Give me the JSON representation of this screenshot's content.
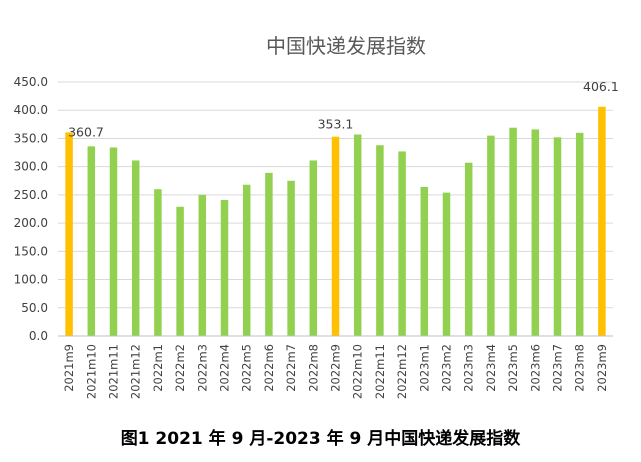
{
  "caption": "图1 2021 年 9 月-2023 年 9 月中国快递发展指数",
  "colors": {
    "normal": "#92D050",
    "highlight": "#FFC000"
  },
  "chart_data": {
    "type": "bar",
    "title": "中国快递发展指数",
    "xlabel": "",
    "ylabel": "",
    "ylim": [
      0,
      450
    ],
    "y_ticks": [
      "0.0",
      "50.0",
      "100.0",
      "150.0",
      "200.0",
      "250.0",
      "300.0",
      "350.0",
      "400.0",
      "450.0"
    ],
    "grid": true,
    "legend": "none",
    "categories": [
      "2021m9",
      "2021m10",
      "2021m11",
      "2021m12",
      "2022m1",
      "2022m2",
      "2022m3",
      "2022m4",
      "2022m5",
      "2022m6",
      "2022m7",
      "2022m8",
      "2022m9",
      "2022m10",
      "2022m11",
      "2022m12",
      "2023m1",
      "2023m2",
      "2023m3",
      "2023m4",
      "2023m5",
      "2023m6",
      "2023m7",
      "2023m8",
      "2023m9"
    ],
    "values": [
      360.7,
      336,
      334,
      311,
      260,
      229,
      250,
      241,
      268,
      289,
      275,
      311,
      353.1,
      357,
      338,
      327,
      264,
      254,
      307,
      355,
      369,
      366,
      352,
      360,
      406.1
    ],
    "highlighted": [
      "2021m9",
      "2022m9",
      "2023m9"
    ],
    "data_labels": [
      {
        "category": "2021m9",
        "text": "360.7"
      },
      {
        "category": "2022m9",
        "text": "353.1"
      },
      {
        "category": "2023m9",
        "text": "406.1"
      }
    ]
  }
}
